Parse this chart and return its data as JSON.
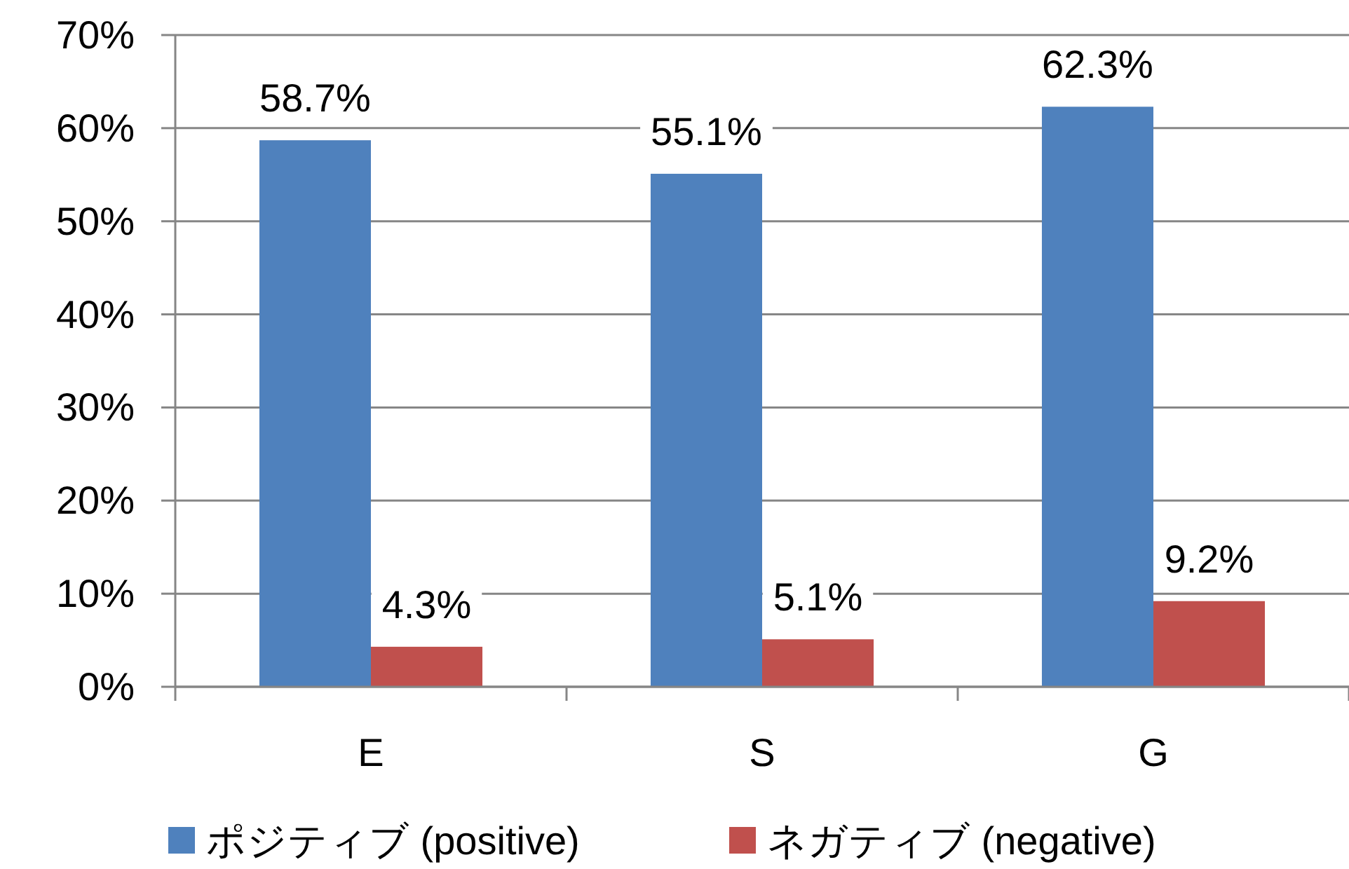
{
  "chart_data": {
    "type": "bar",
    "categories": [
      "E",
      "S",
      "G"
    ],
    "series": [
      {
        "name": "ポジティブ (positive)",
        "color": "#4f81bd",
        "values": [
          58.7,
          55.1,
          62.3
        ],
        "value_labels": [
          "58.7%",
          "55.1%",
          "62.3%"
        ]
      },
      {
        "name": "ネガティブ (negative)",
        "color": "#c0504d",
        "values": [
          4.3,
          5.1,
          9.2
        ],
        "value_labels": [
          "4.3%",
          "5.1%",
          "9.2%"
        ]
      }
    ],
    "ylim": [
      0,
      70
    ],
    "yticks": [
      {
        "value": 0,
        "label": "0%"
      },
      {
        "value": 10,
        "label": "10%"
      },
      {
        "value": 20,
        "label": "20%"
      },
      {
        "value": 30,
        "label": "30%"
      },
      {
        "value": 40,
        "label": "40%"
      },
      {
        "value": 50,
        "label": "50%"
      },
      {
        "value": 60,
        "label": "60%"
      },
      {
        "value": 70,
        "label": "70%"
      }
    ],
    "grid": "y",
    "legend": "bottom"
  }
}
